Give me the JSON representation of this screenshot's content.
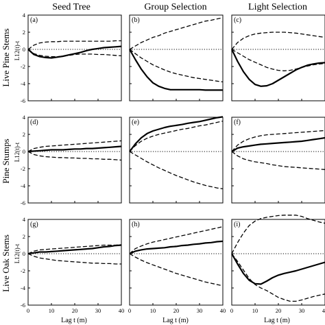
{
  "figure": {
    "column_titles": [
      "Seed Tree",
      "Group Selection",
      "Light Selection"
    ],
    "row_labels": [
      "Live Pine Stems",
      "Pine Stumps",
      "Live Oak Stems"
    ],
    "ylabel": "L12(t)-t",
    "xlabel": "Lag t (m)"
  },
  "chart_data": {
    "type": "line",
    "layout": "3x3 small multiples",
    "xlim": [
      0,
      40
    ],
    "ylim": [
      -6,
      4
    ],
    "x_ticks": [
      0,
      10,
      20,
      30,
      40
    ],
    "y_ticks": [
      -6,
      -4,
      -2,
      0,
      2,
      4
    ],
    "reference_line": {
      "y": 0,
      "style": "dotted"
    },
    "series_styles": {
      "observed": "solid thick",
      "envelope": "dashed"
    },
    "x": [
      0,
      2.5,
      5,
      7.5,
      10,
      12.5,
      15,
      17.5,
      20,
      22.5,
      25,
      27.5,
      30,
      32.5,
      35,
      37.5,
      40
    ],
    "panels": [
      {
        "tag": "(a)",
        "observed": [
          0,
          -0.6,
          -0.85,
          -0.95,
          -1.0,
          -0.9,
          -0.8,
          -0.65,
          -0.5,
          -0.35,
          -0.15,
          0,
          0.1,
          0.2,
          0.25,
          0.3,
          0.35
        ],
        "upper": [
          0,
          0.5,
          0.75,
          0.85,
          0.9,
          0.9,
          0.95,
          0.95,
          0.95,
          0.95,
          0.95,
          0.95,
          0.95,
          0.95,
          0.95,
          1.0,
          1.0
        ],
        "lower": [
          0,
          -0.5,
          -0.7,
          -0.8,
          -0.85,
          -0.85,
          -0.8,
          -0.7,
          -0.6,
          -0.55,
          -0.55,
          -0.55,
          -0.6,
          -0.6,
          -0.65,
          -0.7,
          -0.75
        ]
      },
      {
        "tag": "(b)",
        "observed": [
          0,
          -1.2,
          -2.3,
          -3.2,
          -3.9,
          -4.3,
          -4.55,
          -4.7,
          -4.7,
          -4.7,
          -4.7,
          -4.7,
          -4.7,
          -4.75,
          -4.75,
          -4.75,
          -4.75
        ],
        "upper": [
          0,
          0.4,
          0.8,
          1.1,
          1.4,
          1.6,
          1.9,
          2.1,
          2.3,
          2.5,
          2.7,
          2.9,
          3.1,
          3.3,
          3.4,
          3.55,
          3.7
        ],
        "lower": [
          0,
          -0.5,
          -1.0,
          -1.4,
          -1.8,
          -2.1,
          -2.4,
          -2.65,
          -2.85,
          -3.0,
          -3.15,
          -3.3,
          -3.4,
          -3.5,
          -3.6,
          -3.7,
          -3.8
        ]
      },
      {
        "tag": "(c)",
        "observed": [
          0,
          -1.4,
          -2.6,
          -3.5,
          -4.1,
          -4.3,
          -4.25,
          -4.0,
          -3.6,
          -3.2,
          -2.8,
          -2.4,
          -2.1,
          -1.85,
          -1.7,
          -1.6,
          -1.55
        ],
        "upper": [
          0,
          0.8,
          1.3,
          1.6,
          1.8,
          1.9,
          1.95,
          2.0,
          2.0,
          2.0,
          1.95,
          1.9,
          1.8,
          1.7,
          1.6,
          1.5,
          1.4
        ],
        "lower": [
          0,
          -0.4,
          -0.8,
          -1.2,
          -1.5,
          -1.8,
          -2.1,
          -2.3,
          -2.45,
          -2.5,
          -2.45,
          -2.3,
          -2.1,
          -1.95,
          -1.8,
          -1.7,
          -1.65
        ]
      },
      {
        "tag": "(d)",
        "observed": [
          0,
          0.05,
          0.1,
          0.15,
          0.2,
          0.2,
          0.2,
          0.25,
          0.3,
          0.3,
          0.35,
          0.35,
          0.4,
          0.45,
          0.5,
          0.55,
          0.6
        ],
        "upper": [
          0,
          0.35,
          0.5,
          0.6,
          0.65,
          0.7,
          0.75,
          0.8,
          0.85,
          0.9,
          0.95,
          1.0,
          1.05,
          1.1,
          1.15,
          1.2,
          1.25
        ],
        "lower": [
          0,
          -0.35,
          -0.5,
          -0.6,
          -0.65,
          -0.7,
          -0.7,
          -0.75,
          -0.75,
          -0.8,
          -0.8,
          -0.85,
          -0.85,
          -0.9,
          -0.9,
          -0.95,
          -1.0
        ]
      },
      {
        "tag": "(e)",
        "observed": [
          0,
          0.9,
          1.6,
          2.1,
          2.4,
          2.6,
          2.8,
          2.95,
          3.05,
          3.15,
          3.3,
          3.4,
          3.5,
          3.65,
          3.8,
          3.95,
          4.05
        ],
        "upper": [
          0,
          0.7,
          1.2,
          1.55,
          1.8,
          2.0,
          2.15,
          2.3,
          2.45,
          2.6,
          2.7,
          2.85,
          3.0,
          3.1,
          3.25,
          3.4,
          3.55
        ],
        "lower": [
          0,
          -0.4,
          -0.8,
          -1.2,
          -1.55,
          -1.9,
          -2.2,
          -2.5,
          -2.8,
          -3.05,
          -3.3,
          -3.55,
          -3.75,
          -3.95,
          -4.1,
          -4.25,
          -4.35
        ]
      },
      {
        "tag": "(f)",
        "observed": [
          0,
          0.4,
          0.55,
          0.65,
          0.75,
          0.85,
          0.9,
          0.95,
          1.0,
          1.05,
          1.1,
          1.15,
          1.2,
          1.3,
          1.4,
          1.5,
          1.6
        ],
        "upper": [
          0,
          0.75,
          1.2,
          1.5,
          1.7,
          1.85,
          1.95,
          2.0,
          2.05,
          2.1,
          2.15,
          2.2,
          2.25,
          2.3,
          2.35,
          2.4,
          2.45
        ],
        "lower": [
          0,
          -0.5,
          -0.85,
          -1.05,
          -1.2,
          -1.3,
          -1.4,
          -1.55,
          -1.65,
          -1.75,
          -1.8,
          -1.85,
          -1.9,
          -1.95,
          -2.0,
          -2.05,
          -2.1
        ]
      },
      {
        "tag": "(g)",
        "observed": [
          0,
          0.1,
          0.2,
          0.2,
          0.25,
          0.3,
          0.35,
          0.4,
          0.45,
          0.5,
          0.55,
          0.6,
          0.7,
          0.8,
          0.85,
          0.95,
          1.0
        ],
        "upper": [
          0,
          0.3,
          0.45,
          0.5,
          0.55,
          0.6,
          0.65,
          0.7,
          0.75,
          0.8,
          0.85,
          0.9,
          0.95,
          1.0,
          1.0,
          1.0,
          1.05
        ],
        "lower": [
          0,
          -0.3,
          -0.5,
          -0.6,
          -0.7,
          -0.8,
          -0.85,
          -0.9,
          -0.95,
          -1.0,
          -1.05,
          -1.1,
          -1.1,
          -1.15,
          -1.15,
          -1.2,
          -1.2
        ]
      },
      {
        "tag": "(h)",
        "observed": [
          0,
          0.3,
          0.45,
          0.55,
          0.6,
          0.65,
          0.7,
          0.8,
          0.85,
          0.95,
          1.0,
          1.1,
          1.15,
          1.25,
          1.3,
          1.4,
          1.45
        ],
        "upper": [
          0,
          0.6,
          0.9,
          1.15,
          1.35,
          1.5,
          1.65,
          1.8,
          1.95,
          2.1,
          2.25,
          2.4,
          2.55,
          2.7,
          2.85,
          3.0,
          3.15
        ],
        "lower": [
          0,
          -0.4,
          -0.75,
          -1.05,
          -1.3,
          -1.55,
          -1.8,
          -2.05,
          -2.3,
          -2.5,
          -2.7,
          -2.9,
          -3.1,
          -3.3,
          -3.45,
          -3.6,
          -3.75
        ]
      },
      {
        "tag": "(i)",
        "observed": [
          0,
          -1.2,
          -2.3,
          -3.1,
          -3.5,
          -3.55,
          -3.2,
          -2.8,
          -2.5,
          -2.3,
          -2.15,
          -2.0,
          -1.8,
          -1.6,
          -1.4,
          -1.2,
          -1.0
        ],
        "upper": [
          0,
          1.3,
          2.4,
          3.3,
          3.8,
          4.1,
          4.25,
          4.35,
          4.45,
          4.5,
          4.5,
          4.5,
          4.35,
          4.1,
          3.9,
          3.7,
          3.55
        ],
        "lower": [
          0,
          -0.9,
          -1.9,
          -2.9,
          -3.6,
          -4.0,
          -4.3,
          -4.7,
          -5.1,
          -5.35,
          -5.55,
          -5.55,
          -5.4,
          -5.2,
          -5.0,
          -4.85,
          -4.7
        ]
      }
    ]
  }
}
